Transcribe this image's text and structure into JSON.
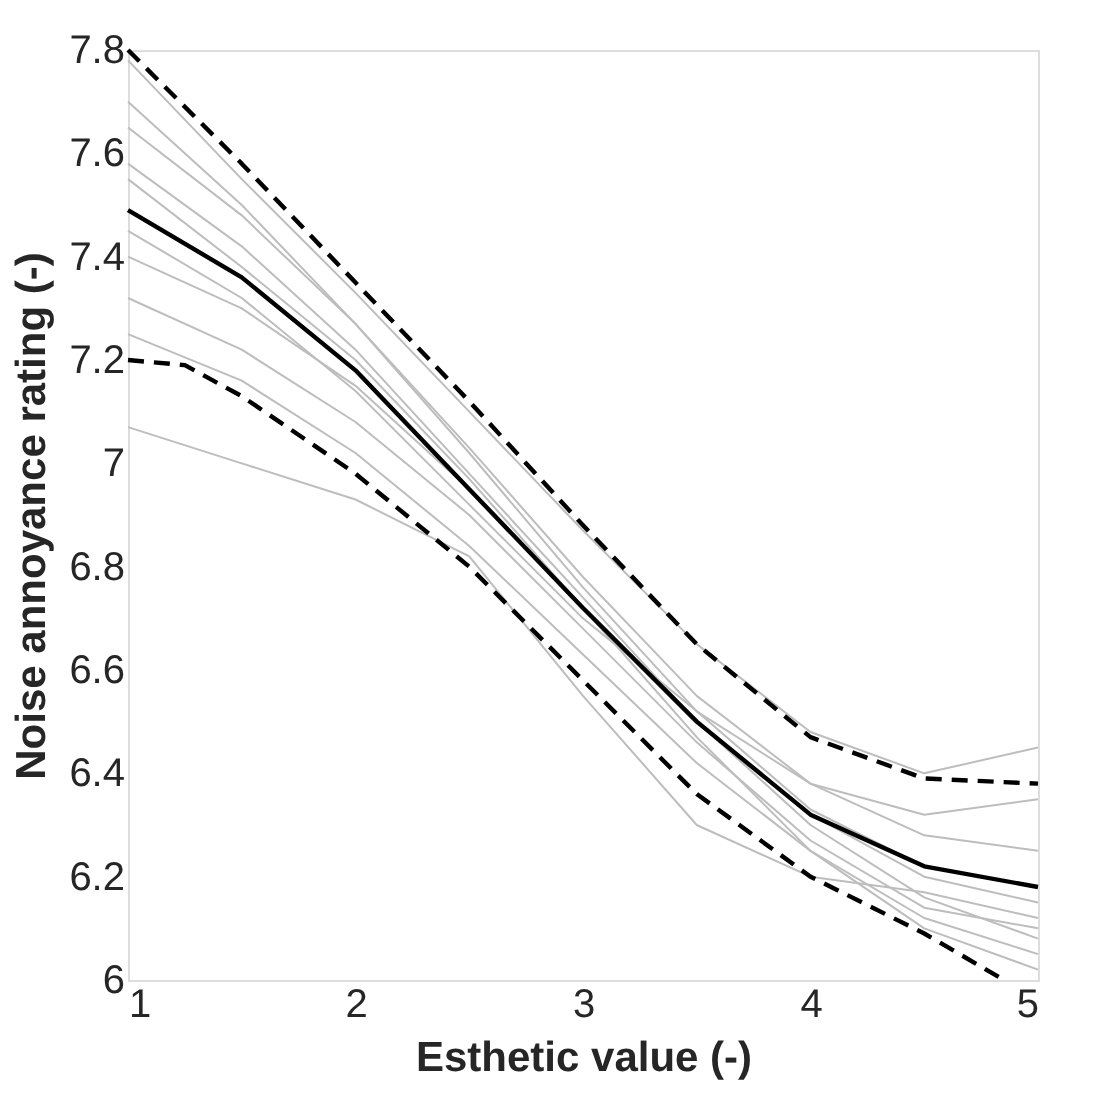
{
  "chart_data": {
    "type": "line",
    "xlabel": "Esthetic value (-)",
    "ylabel": "Noise annoyance rating (-)",
    "x": [
      1,
      1.5,
      2,
      2.5,
      3,
      3.5,
      4,
      4.5,
      5
    ],
    "xlim": [
      1,
      5
    ],
    "xticks": [
      1,
      2,
      3,
      4,
      5
    ],
    "ylim": [
      6,
      7.8
    ],
    "yticks": [
      6,
      6.2,
      6.4,
      6.6,
      6.8,
      7,
      7.2,
      7.4,
      7.6,
      7.8
    ],
    "grid": false,
    "marker": "none",
    "series": [
      {
        "color": "#bdbdbd",
        "line_style": "solid",
        "values": [
          7.78,
          7.55,
          7.33,
          7.1,
          6.87,
          6.65,
          6.48,
          6.4,
          6.45
        ]
      },
      {
        "color": "#bdbdbd",
        "line_style": "solid",
        "values": [
          7.65,
          7.48,
          7.27,
          7.03,
          6.78,
          6.55,
          6.38,
          6.28,
          6.25
        ]
      },
      {
        "color": "#bdbdbd",
        "line_style": "solid",
        "values": [
          7.58,
          7.42,
          7.22,
          6.98,
          6.74,
          6.5,
          6.32,
          6.2,
          6.15
        ]
      },
      {
        "color": "#bdbdbd",
        "line_style": "solid",
        "values": [
          7.4,
          7.3,
          7.15,
          6.95,
          6.72,
          6.5,
          6.3,
          6.16,
          6.08
        ]
      },
      {
        "color": "#bdbdbd",
        "line_style": "solid",
        "values": [
          7.32,
          7.22,
          7.08,
          6.9,
          6.68,
          6.46,
          6.27,
          6.14,
          6.1
        ]
      },
      {
        "color": "#bdbdbd",
        "line_style": "solid",
        "values": [
          7.25,
          7.16,
          7.02,
          6.84,
          6.63,
          6.42,
          6.25,
          6.12,
          6.05
        ]
      },
      {
        "color": "#bdbdbd",
        "line_style": "solid",
        "values": [
          7.07,
          7.0,
          6.93,
          6.82,
          6.55,
          6.3,
          6.2,
          6.17,
          6.12
        ]
      },
      {
        "color": "#bdbdbd",
        "line_style": "solid",
        "values": [
          7.45,
          7.32,
          7.14,
          6.92,
          6.7,
          6.52,
          6.38,
          6.32,
          6.35
        ]
      },
      {
        "color": "#bdbdbd",
        "line_style": "solid",
        "values": [
          7.55,
          7.38,
          7.2,
          6.97,
          6.72,
          6.47,
          6.25,
          6.1,
          6.02
        ]
      },
      {
        "color": "#bdbdbd",
        "line_style": "solid",
        "values": [
          7.7,
          7.5,
          7.27,
          7.02,
          6.76,
          6.52,
          6.33,
          6.22,
          6.18
        ]
      },
      {
        "color": "#000000",
        "line_style": "dashed",
        "values": [
          7.8,
          7.58,
          7.35,
          7.12,
          6.88,
          6.65,
          6.47,
          6.39,
          6.38
        ]
      },
      {
        "color": "#000000",
        "line_style": "dashed",
        "x": [
          1,
          1.25,
          1.5,
          2,
          2.5,
          3,
          3.5,
          4,
          4.5,
          4.85
        ],
        "values": [
          7.2,
          7.19,
          7.13,
          6.98,
          6.8,
          6.58,
          6.36,
          6.2,
          6.09,
          6.0
        ]
      },
      {
        "color": "#000000",
        "line_style": "solid",
        "values": [
          7.49,
          7.36,
          7.18,
          6.95,
          6.72,
          6.5,
          6.32,
          6.22,
          6.18
        ]
      }
    ]
  }
}
